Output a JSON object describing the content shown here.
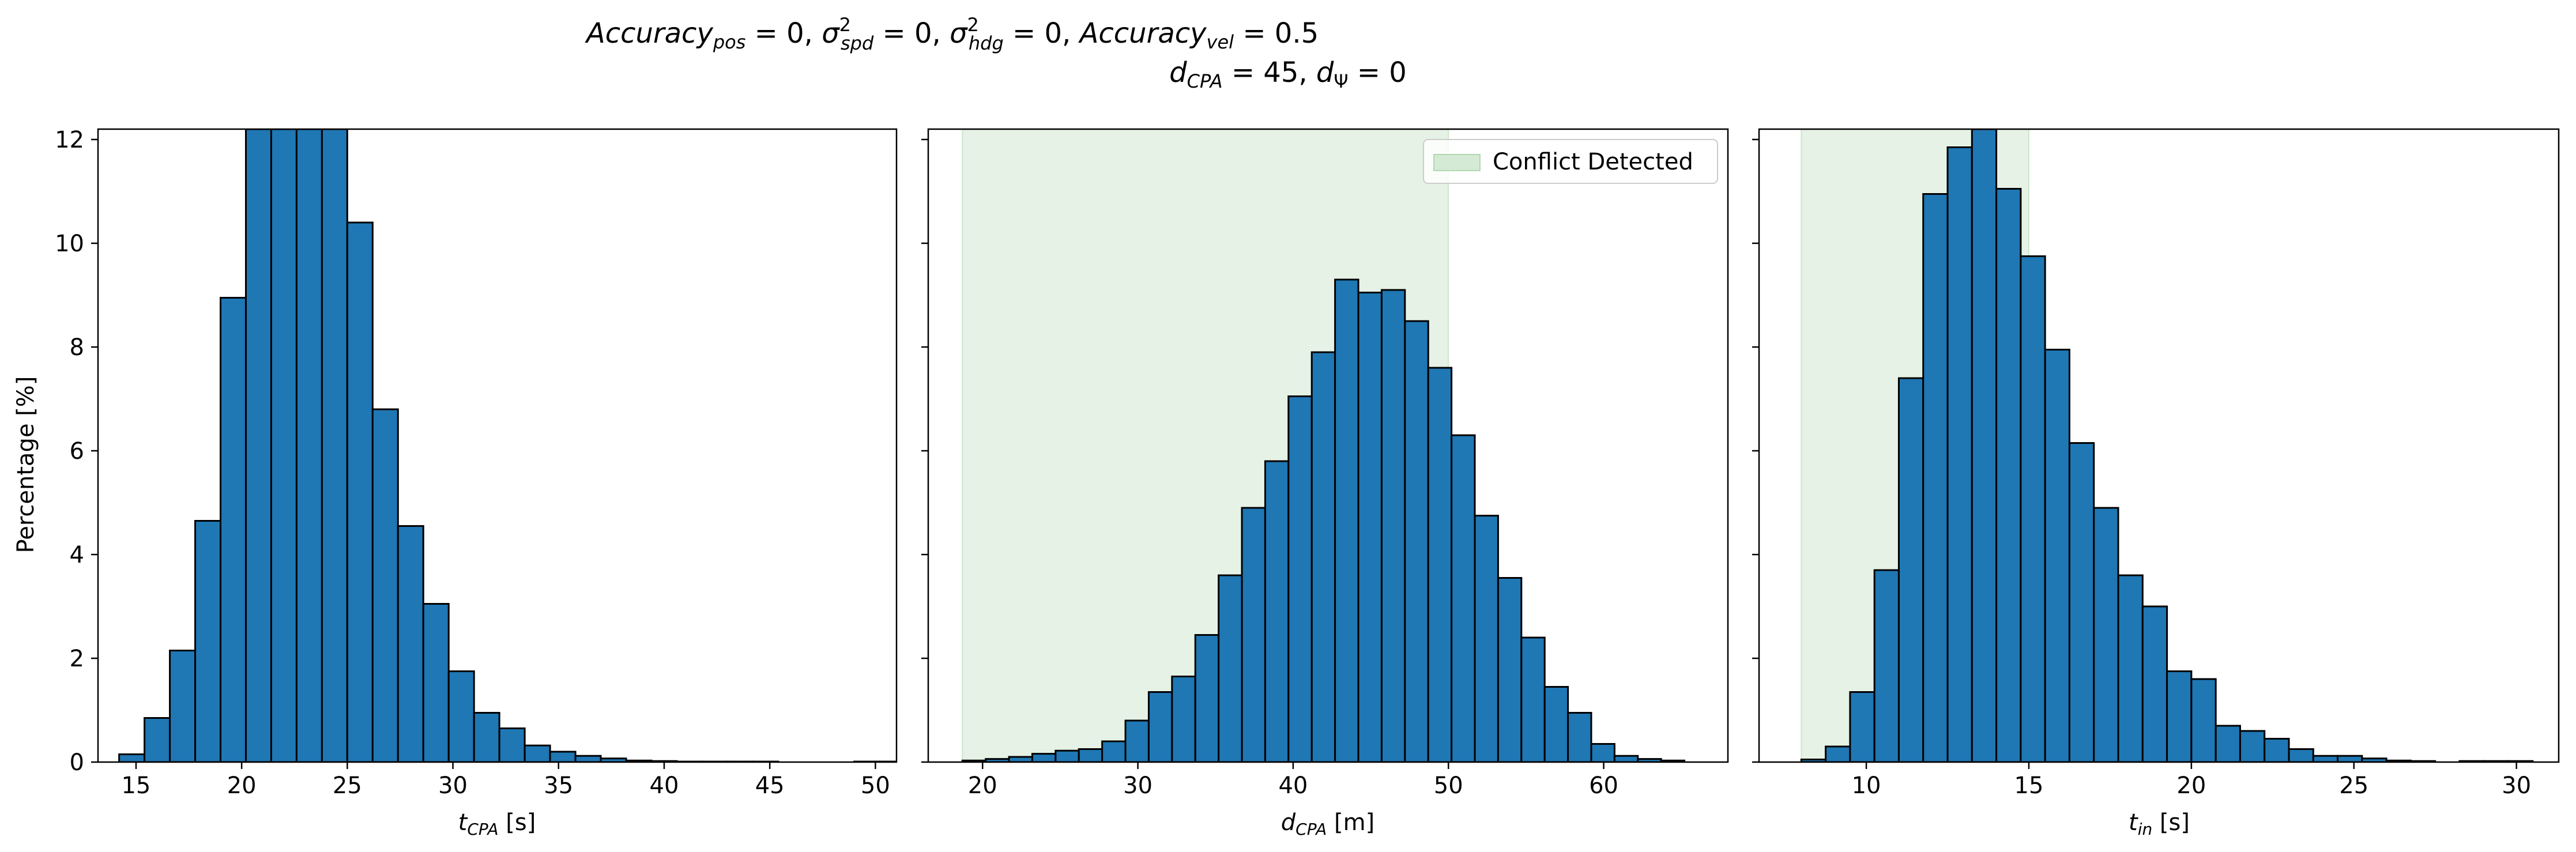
{
  "figure_title": {
    "line1": "Accuracy_pos = 0, σ²_spd = 0, σ²_hdg = 0, Accuracy_vel = 0.5",
    "line2": "d_CPA = 45, d_Ψ = 0"
  },
  "colors": {
    "bar_fill": "#1f77b4",
    "bar_edge": "#000000",
    "conflict_fill": "#d5ead5"
  },
  "chart_data": [
    {
      "type": "bar",
      "xlabel": "t_CPA [s]",
      "ylabel": "Percentage [%]",
      "xlim": [
        13.2,
        51.0
      ],
      "ylim": [
        0,
        12.2
      ],
      "xticks": [
        15,
        20,
        25,
        30,
        35,
        40,
        45,
        50
      ],
      "yticks": [
        0,
        2,
        4,
        6,
        8,
        10,
        12
      ],
      "bin_start": 14.2,
      "bin_width": 1.2,
      "values": [
        0.15,
        0.85,
        2.15,
        4.65,
        8.95,
        12.2,
        12.2,
        12.2,
        12.2,
        10.4,
        6.8,
        4.55,
        3.05,
        1.75,
        0.95,
        0.65,
        0.32,
        0.2,
        0.12,
        0.07,
        0.03,
        0.02,
        0.01,
        0.01,
        0.01,
        0.01,
        0.0,
        0.0,
        0.0,
        0.01,
        0.01
      ]
    },
    {
      "type": "bar",
      "xlabel": "d_CPA [m]",
      "xlim": [
        16.5,
        68.0
      ],
      "ylim": [
        0,
        12.2
      ],
      "xticks": [
        20,
        30,
        40,
        50,
        60
      ],
      "yticks": [
        0,
        2,
        4,
        6,
        8,
        10,
        12
      ],
      "bin_start": 18.7,
      "bin_width": 1.5,
      "values": [
        0.03,
        0.06,
        0.1,
        0.16,
        0.22,
        0.25,
        0.4,
        0.8,
        1.35,
        1.65,
        2.45,
        3.6,
        4.9,
        5.8,
        7.05,
        7.9,
        9.3,
        9.05,
        9.1,
        8.5,
        7.6,
        6.3,
        4.75,
        3.55,
        2.4,
        1.45,
        0.95,
        0.35,
        0.12,
        0.06,
        0.03
      ],
      "conflict_region": [
        18.7,
        50.0
      ],
      "legend": {
        "label": "Conflict Detected",
        "position": "upper right"
      }
    },
    {
      "type": "bar",
      "xlabel": "t_in [s]",
      "xlim": [
        6.7,
        31.3
      ],
      "ylim": [
        0,
        12.2
      ],
      "xticks": [
        10,
        15,
        20,
        25,
        30
      ],
      "yticks": [
        0,
        2,
        4,
        6,
        8,
        10,
        12
      ],
      "bin_start": 8.0,
      "bin_width": 0.75,
      "values": [
        0.05,
        0.3,
        1.35,
        3.7,
        7.4,
        10.95,
        11.85,
        12.2,
        11.05,
        9.75,
        7.95,
        6.15,
        4.9,
        3.6,
        3.0,
        1.75,
        1.6,
        0.7,
        0.6,
        0.45,
        0.25,
        0.12,
        0.12,
        0.07,
        0.03,
        0.02,
        0.0,
        0.02,
        0.02,
        0.02
      ],
      "conflict_region": [
        8.0,
        15.0
      ]
    }
  ]
}
